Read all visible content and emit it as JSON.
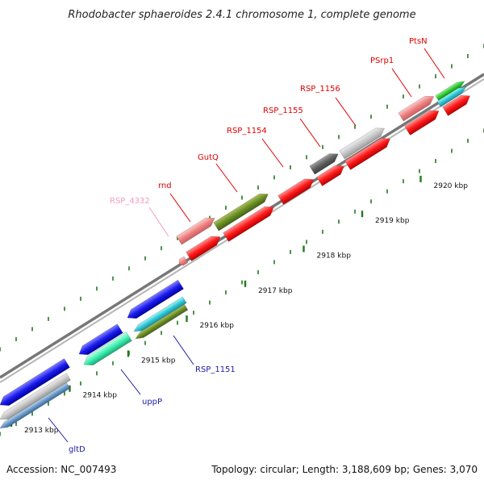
{
  "title": "Rhodobacter sphaeroides 2.4.1 chromosome 1, complete genome",
  "footer": {
    "accession": "Accession: NC_007493",
    "summary": "Topology: circular; Length: 3,188,609 bp; Genes: 3,070"
  },
  "ticks": [
    {
      "label": "2913 kbp"
    },
    {
      "label": "2914 kbp"
    },
    {
      "label": "2915 kbp"
    },
    {
      "label": "2916 kbp"
    },
    {
      "label": "2917 kbp"
    },
    {
      "label": "2918 kbp"
    },
    {
      "label": "2919 kbp"
    },
    {
      "label": "2920 kbp"
    }
  ],
  "gene_labels": [
    {
      "text": "gltD",
      "color": "#1a1aa8"
    },
    {
      "text": "uppP",
      "color": "#1a1aa8"
    },
    {
      "text": "RSP_1151",
      "color": "#1a1aa8"
    },
    {
      "text": "RSP_4332",
      "color": "#f49ac1"
    },
    {
      "text": "rnd",
      "color": "#e00000"
    },
    {
      "text": "GutQ",
      "color": "#e00000"
    },
    {
      "text": "RSP_1154",
      "color": "#e00000"
    },
    {
      "text": "RSP_1155",
      "color": "#e00000"
    },
    {
      "text": "RSP_1156",
      "color": "#e00000"
    },
    {
      "text": "PSrp1",
      "color": "#e00000"
    },
    {
      "text": "PtsN",
      "color": "#e00000"
    }
  ],
  "colors": {
    "backbone": "#8c8c8c",
    "tick": "#1f7a1f",
    "forward_strand": "#ff1a1a",
    "reverse_strand": "#1a1aee"
  }
}
